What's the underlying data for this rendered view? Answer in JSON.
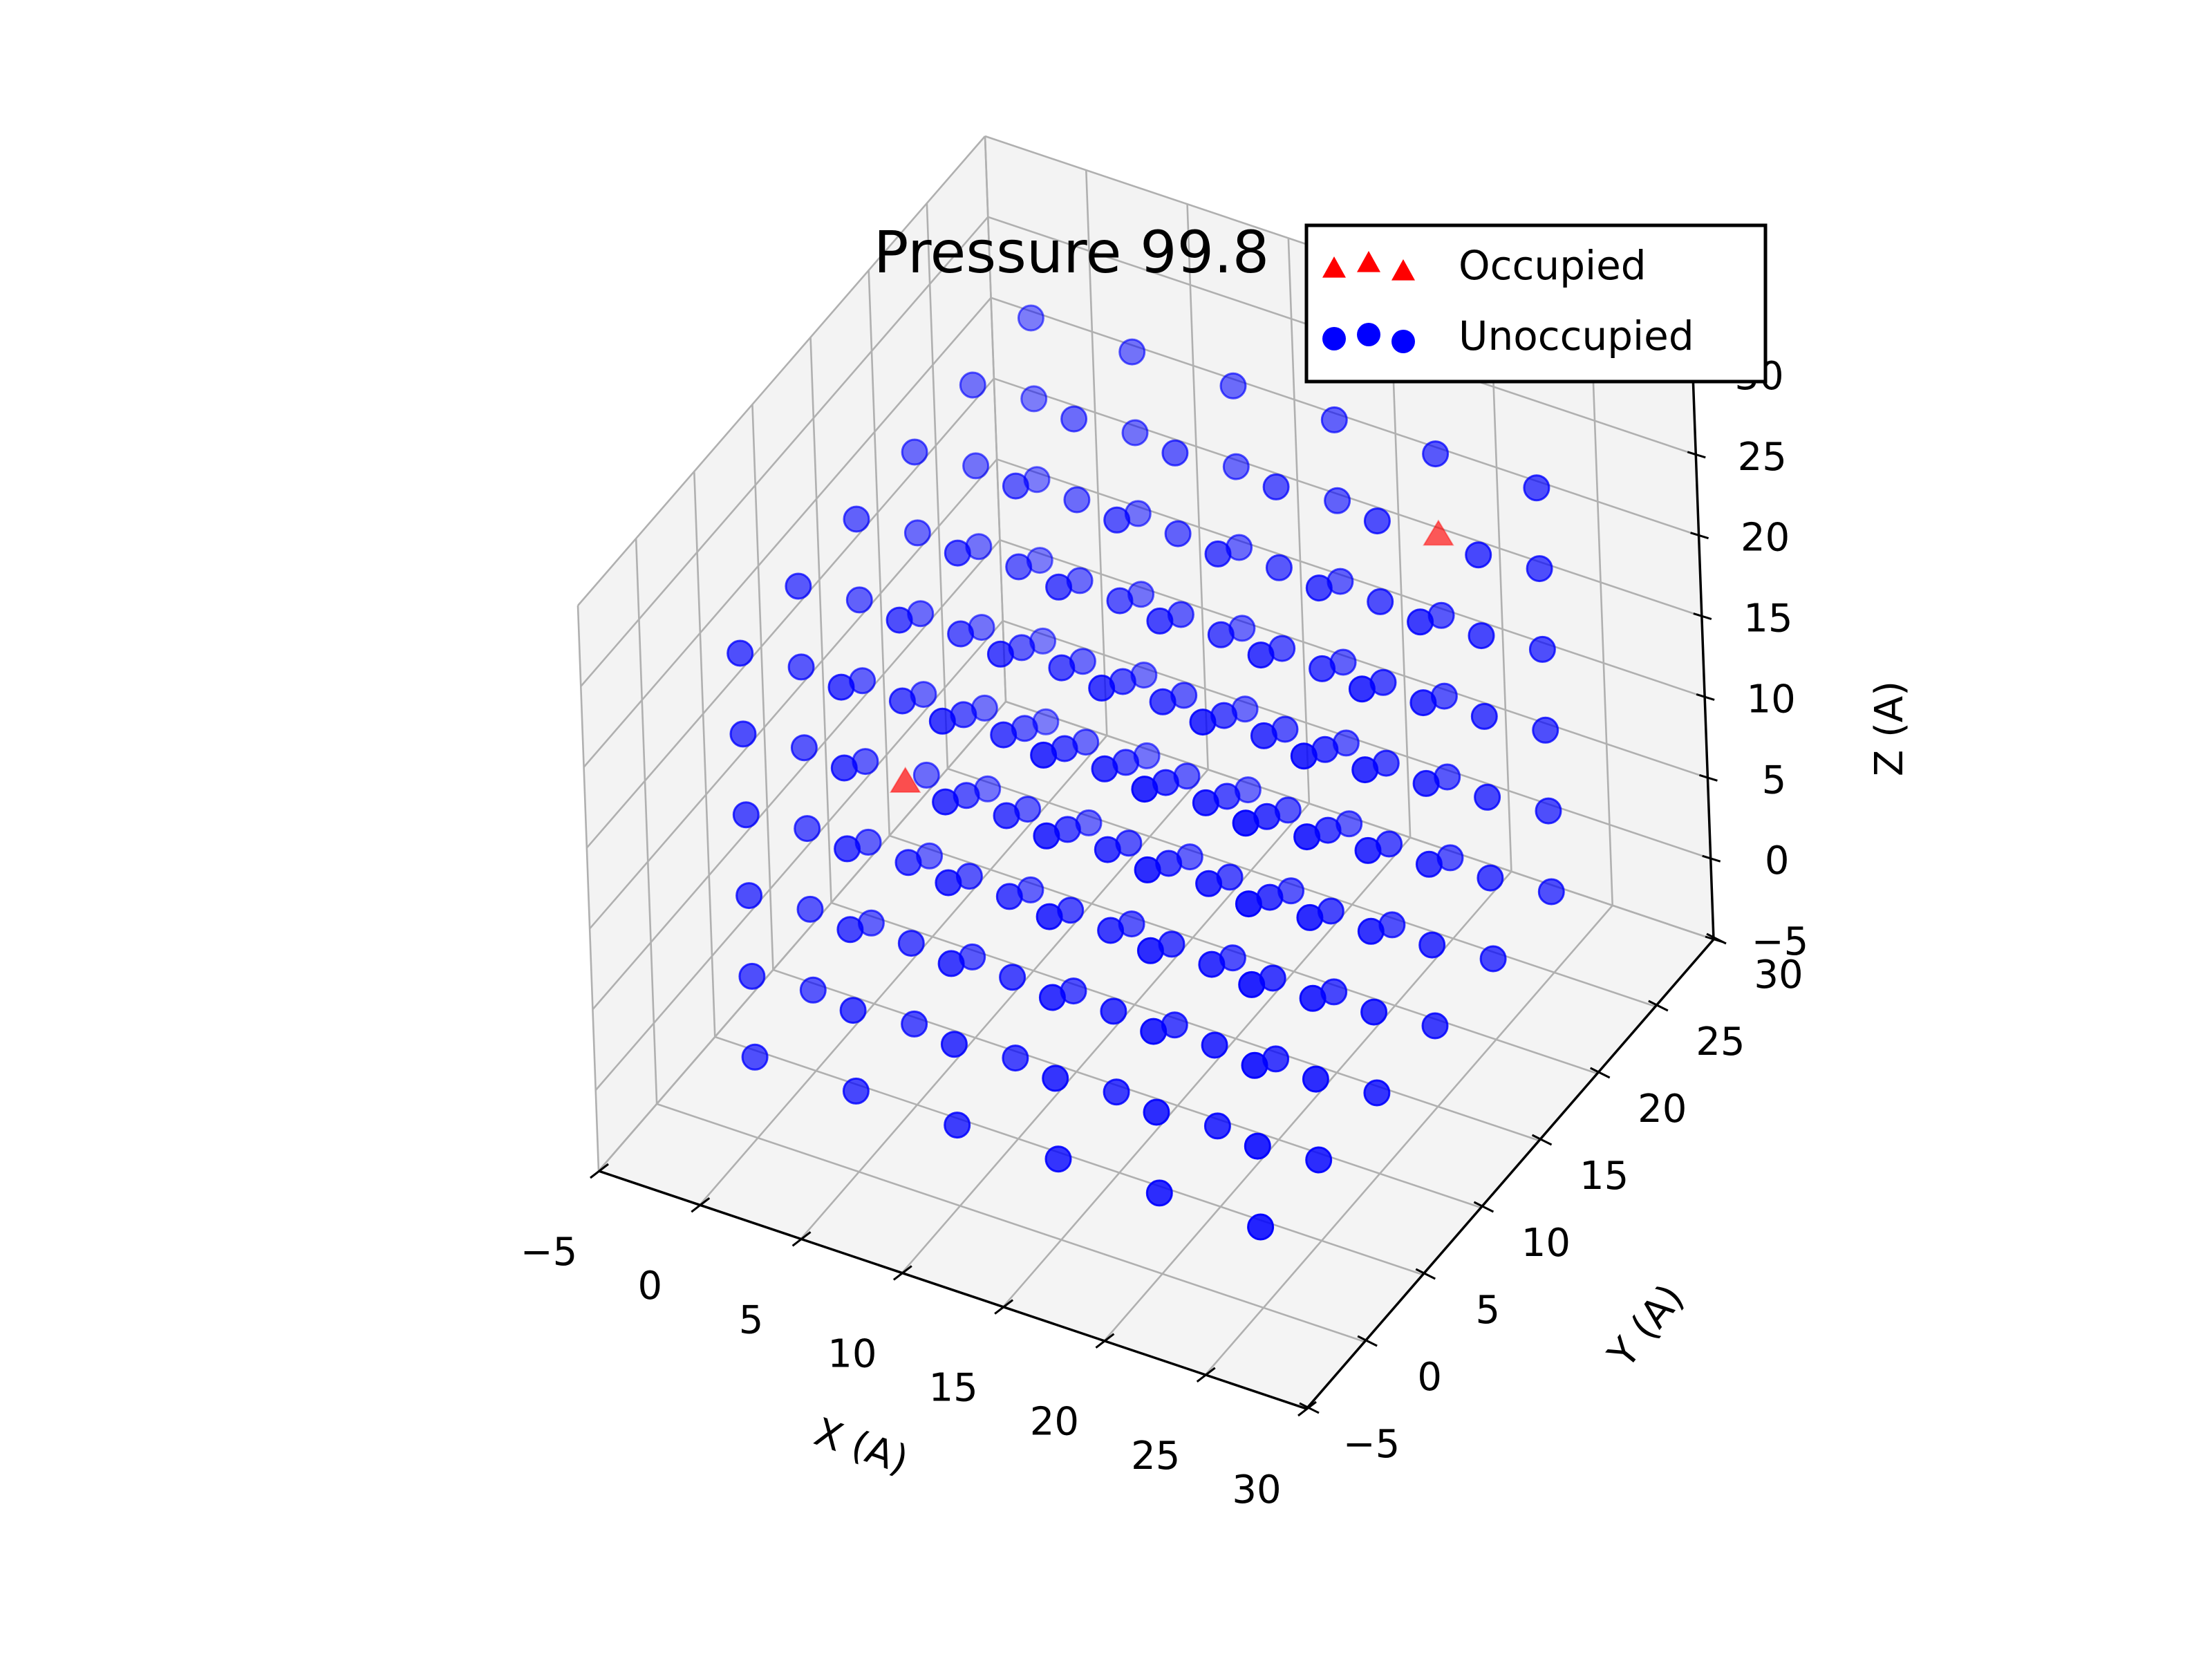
{
  "chart_data": {
    "type": "scatter",
    "projection": "3d",
    "title": "Pressure 99.8",
    "xlabel": "X (A)",
    "ylabel": "Y (A)",
    "zlabel": "Z (A)",
    "xlim": [
      -5,
      30
    ],
    "ylim": [
      -5,
      30
    ],
    "zlim": [
      -5,
      30
    ],
    "x_ticks": [
      "−5",
      "0",
      "5",
      "10",
      "15",
      "20",
      "25",
      "30"
    ],
    "y_ticks": [
      "−5",
      "0",
      "5",
      "10",
      "15",
      "20",
      "25",
      "30"
    ],
    "z_ticks": [
      "−5",
      "0",
      "5",
      "10",
      "15",
      "20",
      "25",
      "30"
    ],
    "grid": true,
    "legend_position": "top-right",
    "grid_points": {
      "description_of_lattice": "unoccupied sites on a regular 3D lattice",
      "x": [
        0,
        5,
        10,
        15,
        20,
        25
      ],
      "y": [
        0,
        5,
        10,
        15,
        20,
        25
      ],
      "z": [
        0,
        5,
        10,
        15,
        20,
        25
      ]
    },
    "series": [
      {
        "name": "Occupied",
        "marker": "triangle",
        "color": "#ff0000",
        "points": [
          [
            5,
            5,
            15
          ],
          [
            20,
            25,
            20
          ]
        ]
      },
      {
        "name": "Unoccupied",
        "marker": "circle",
        "color": "#0000ff"
      }
    ]
  },
  "colors": {
    "pane": "#f2f2f2",
    "grid": "#b0b0b0",
    "occupied": "#ff0000",
    "unoccupied": "#0000ff"
  }
}
